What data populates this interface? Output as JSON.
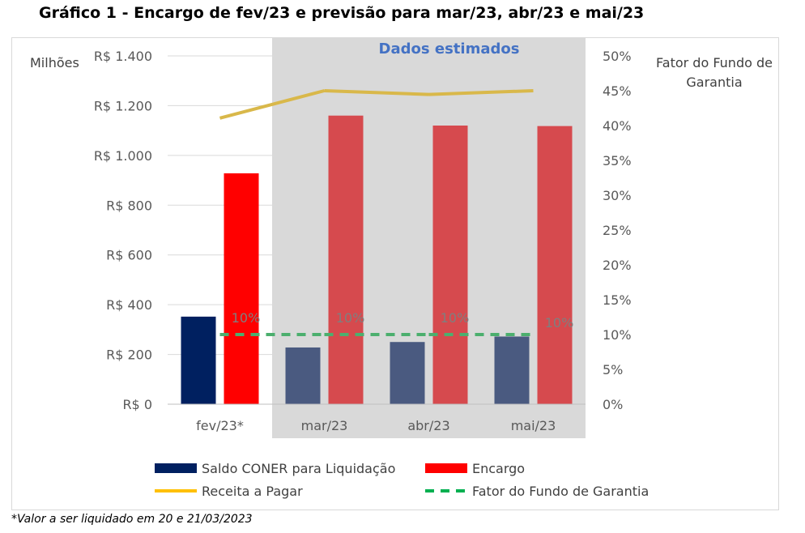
{
  "title": "Gráfico 1 - Encargo de fev/23 e previsão para mar/23, abr/23 e mai/23",
  "footnote": "*Valor a ser liquidado em 20 e 21/03/2023",
  "chart_data": {
    "type": "bar",
    "categories": [
      "fev/23*",
      "mar/23",
      "abr/23",
      "mai/23"
    ],
    "estimated_region_label": "Dados estimados",
    "estimated_categories": [
      "mar/23",
      "abr/23",
      "mai/23"
    ],
    "left_axis": {
      "unit_label": "Milhões",
      "ylim": [
        0,
        1400
      ],
      "ticks": [
        0,
        200,
        400,
        600,
        800,
        1000,
        1200,
        1400
      ],
      "tick_labels": [
        "R$ 0",
        "R$ 200",
        "R$ 400",
        "R$ 600",
        "R$ 800",
        "R$ 1.000",
        "R$ 1.200",
        "R$ 1.400"
      ]
    },
    "right_axis": {
      "title": "Fator do Fundo de Garantia",
      "ylim": [
        0,
        50
      ],
      "ticks": [
        0,
        5,
        10,
        15,
        20,
        25,
        30,
        35,
        40,
        45,
        50
      ],
      "tick_labels": [
        "0%",
        "5%",
        "10%",
        "15%",
        "20%",
        "25%",
        "30%",
        "35%",
        "40%",
        "45%",
        "50%"
      ]
    },
    "grid": true,
    "legend_position": "bottom",
    "series": [
      {
        "name": "Saldo CONER para Liquidação",
        "kind": "bar",
        "axis": "left",
        "values": [
          352,
          228,
          250,
          272
        ],
        "colors": [
          "#002060",
          "#4a5a80",
          "#4a5a80",
          "#4a5a80"
        ],
        "legend_color": "#002060"
      },
      {
        "name": "Encargo",
        "kind": "bar",
        "axis": "left",
        "values": [
          928,
          1160,
          1120,
          1118
        ],
        "colors": [
          "#ff0000",
          "#d64a4e",
          "#d64a4e",
          "#d64a4e"
        ],
        "legend_color": "#ff0000"
      },
      {
        "name": "Receita a Pagar",
        "kind": "line",
        "axis": "left",
        "values": [
          1150,
          1260,
          1245,
          1260
        ],
        "color": "#ffc000",
        "estimated_color": "#d9b84a"
      },
      {
        "name": "Fator do Fundo de Garantia",
        "kind": "line-dashed",
        "axis": "right",
        "values": [
          10,
          10,
          10,
          10
        ],
        "data_labels": [
          "10%",
          "10%",
          "10%",
          "10%"
        ],
        "color": "#00b050",
        "estimated_color": "#4caf6e"
      }
    ]
  }
}
